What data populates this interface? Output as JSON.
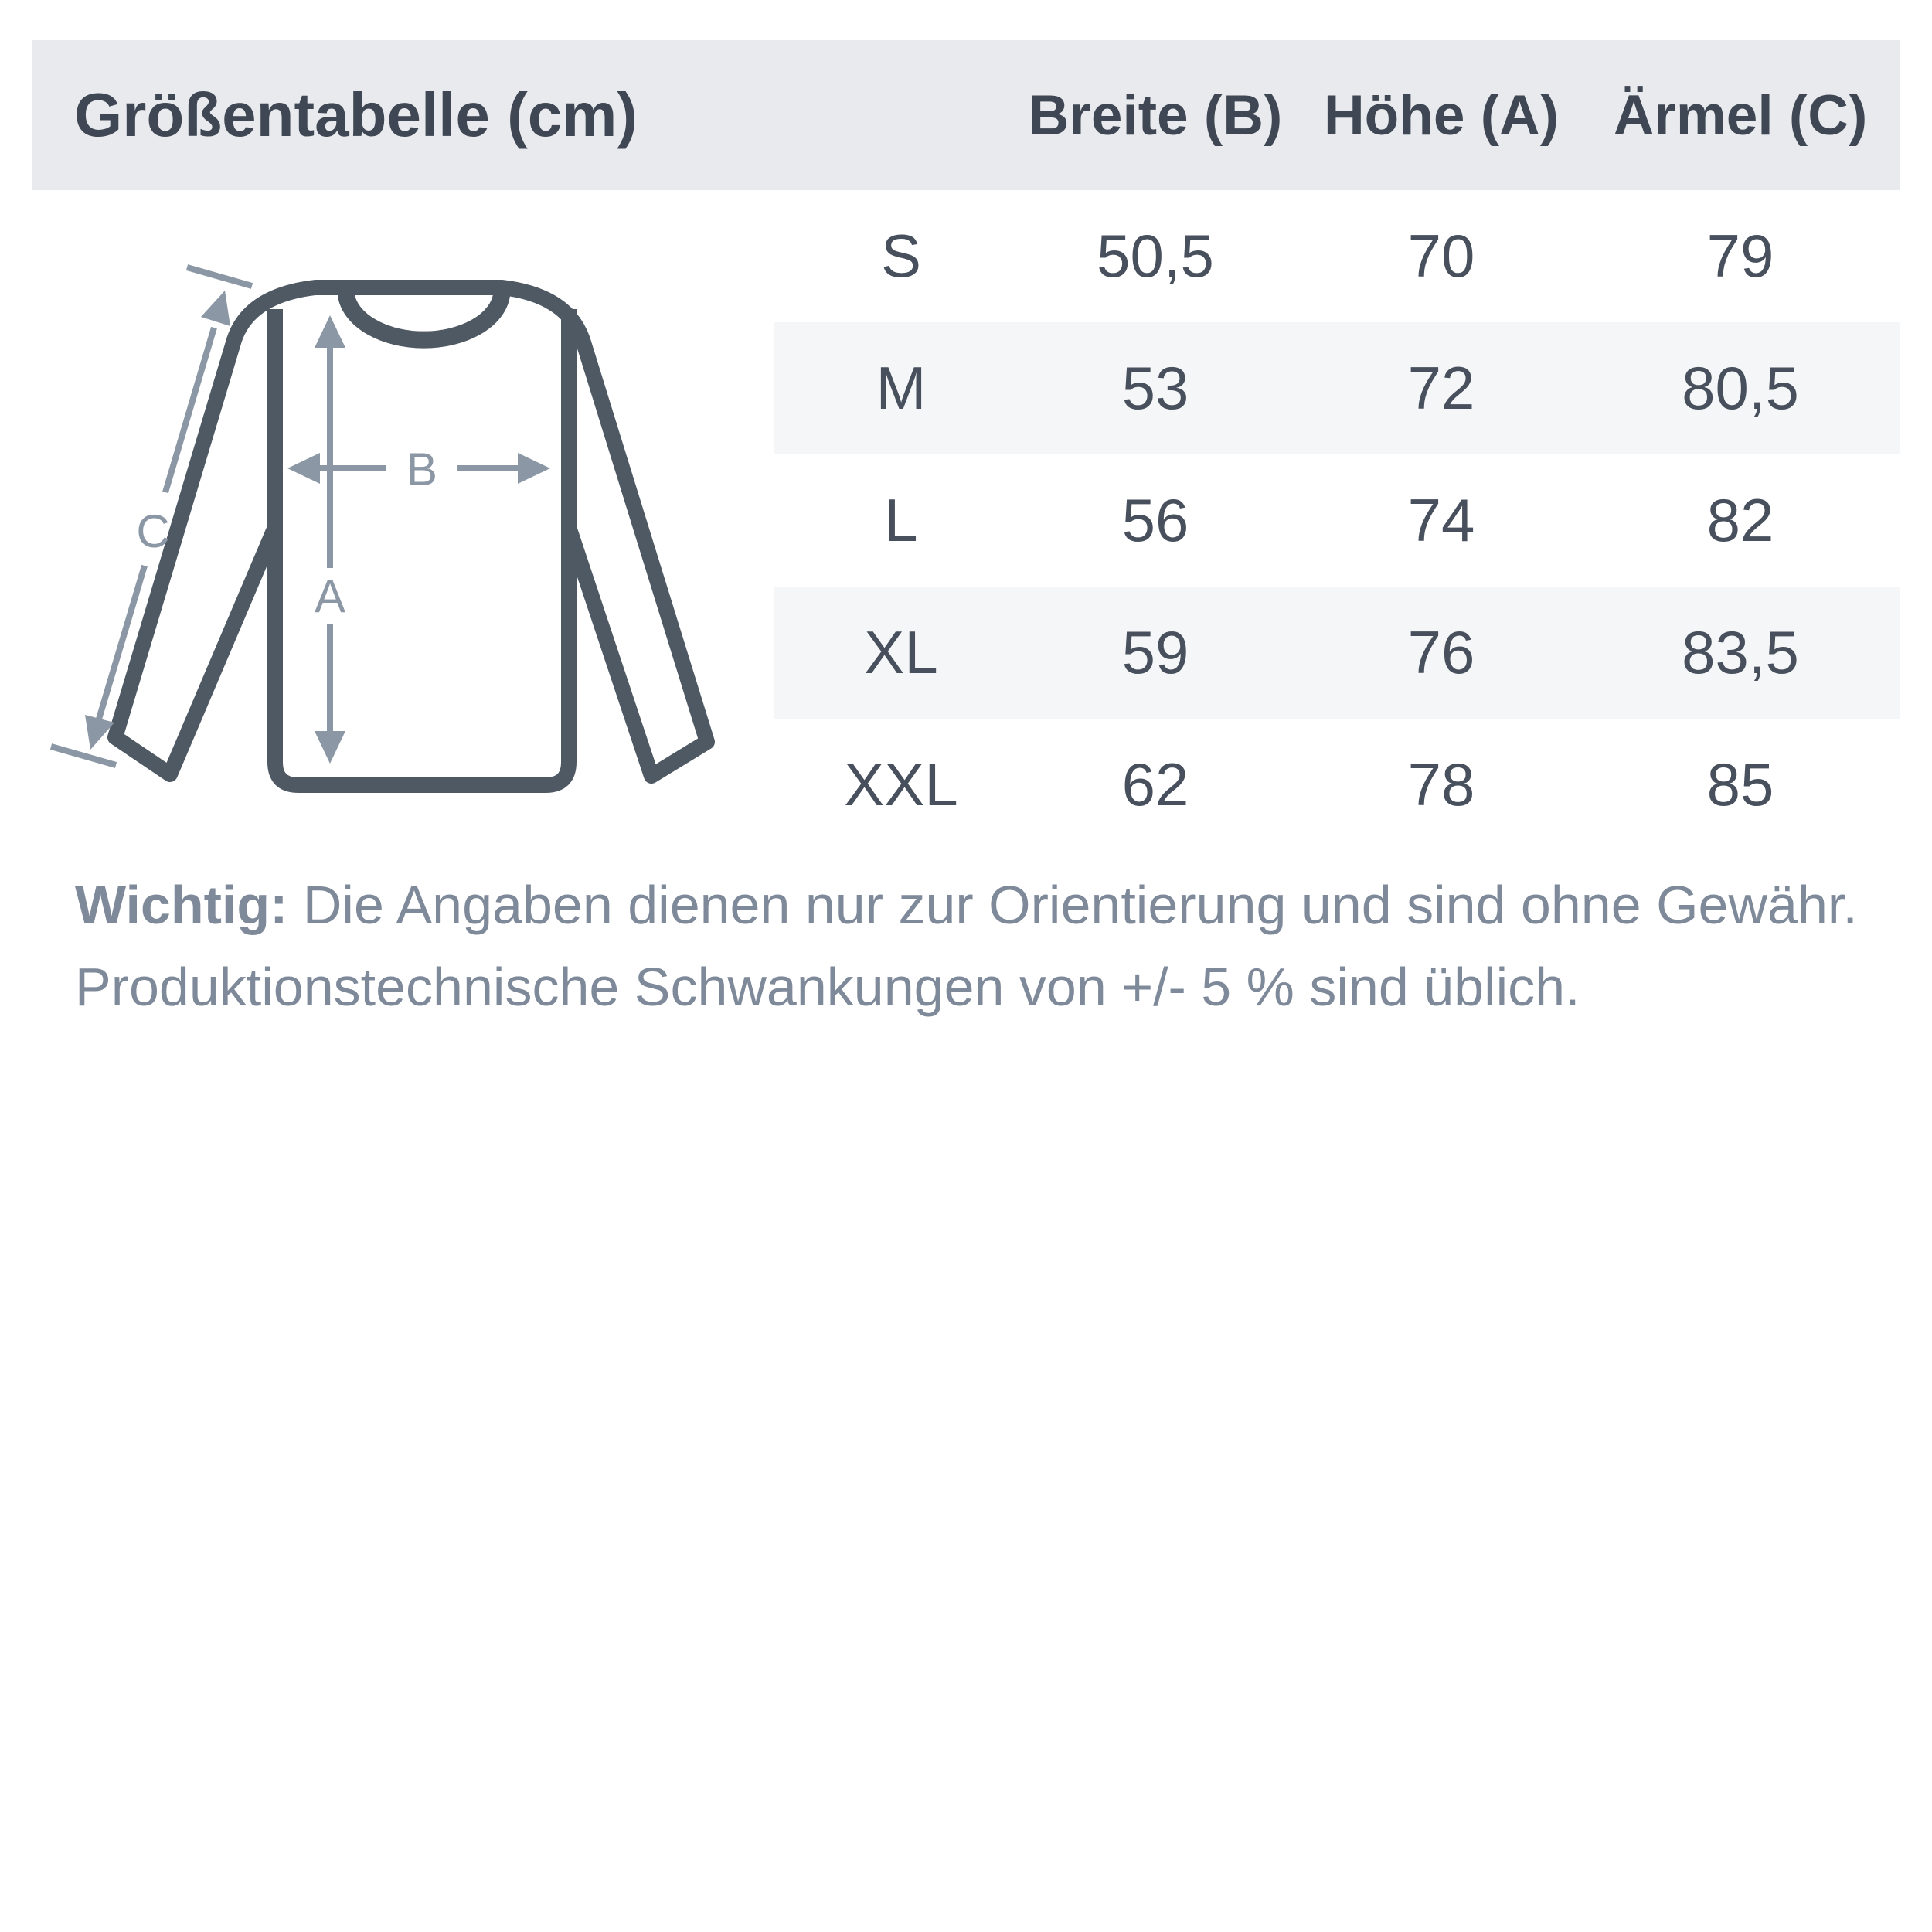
{
  "table": {
    "title": "Größentabelle (cm)",
    "columns": {
      "breite": "Breite (B)",
      "hoehe": "Höhe (A)",
      "aermel": "Ärmel (C)"
    },
    "rows": [
      {
        "size": "S",
        "breite": "50,5",
        "hoehe": "70",
        "aermel": "79"
      },
      {
        "size": "M",
        "breite": "53",
        "hoehe": "72",
        "aermel": "80,5"
      },
      {
        "size": "L",
        "breite": "56",
        "hoehe": "74",
        "aermel": "82"
      },
      {
        "size": "XL",
        "breite": "59",
        "hoehe": "76",
        "aermel": "83,5"
      },
      {
        "size": "XXL",
        "breite": "62",
        "hoehe": "78",
        "aermel": "85"
      }
    ]
  },
  "chart_data": {
    "type": "table",
    "title": "Größentabelle (cm)",
    "columns": [
      "",
      "Breite (B)",
      "Höhe (A)",
      "Ärmel (C)"
    ],
    "rows": [
      [
        "S",
        "50,5",
        "70",
        "79"
      ],
      [
        "M",
        "53",
        "72",
        "80,5"
      ],
      [
        "L",
        "56",
        "74",
        "82"
      ],
      [
        "XL",
        "59",
        "76",
        "83,5"
      ],
      [
        "XXL",
        "62",
        "78",
        "85"
      ]
    ]
  },
  "diagram": {
    "labels": {
      "a": "A",
      "b": "B",
      "c": "C"
    }
  },
  "note": {
    "bold": "Wichtig:",
    "line1": " Die Angaben dienen nur zur Orientierung und sind ohne Gewähr.",
    "line2": "Produktionstechnische Schwankungen von +/- 5 % sind üblich."
  },
  "colors": {
    "header_band": "#e8eaee",
    "stripe": "#f5f6f8",
    "title_text": "#3e4753",
    "value_text": "#47505c",
    "note_text": "#7e8999",
    "garment_outline": "#4e5963",
    "dimension_arrows": "#8b97a4"
  }
}
